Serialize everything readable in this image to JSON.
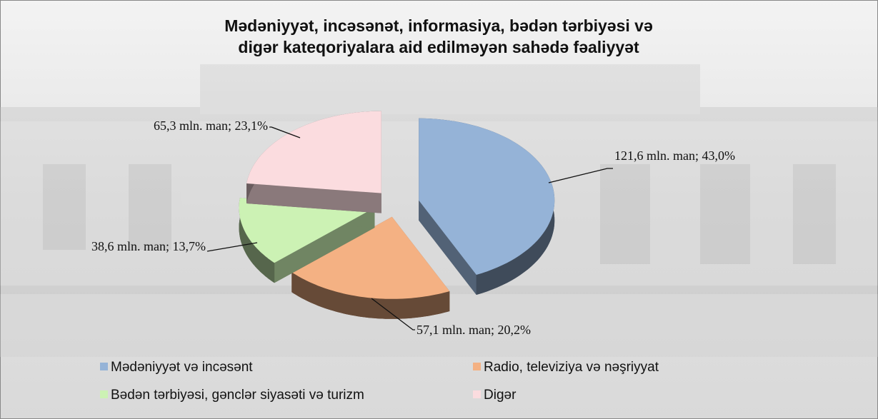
{
  "chart_data": {
    "type": "pie",
    "title": "Mədəniyyət, incəsənət, informasiya, bədən tərbiyəsi və digər kateqoriyalara aid edilməyən sahədə fəaliyyət",
    "categories": [
      "Mədəniyyət və incəsənt",
      "Radio, televiziya və nəşriyyat",
      "Bədən tərbiyəsi, gənclər siyasəti və turizm",
      "Digər"
    ],
    "values": [
      121.6,
      57.1,
      38.6,
      65.3
    ],
    "value_labels": [
      "121,6 mln. man; 43,0%",
      "57,1 mln. man; 20,2%",
      "38,6 mln. man; 13,7%",
      "65,3 mln. man; 23,1%"
    ],
    "colors": [
      "#95b3d7",
      "#f4b183",
      "#ccf2b4",
      "#fbdcdf"
    ],
    "legend": "bottom"
  }
}
